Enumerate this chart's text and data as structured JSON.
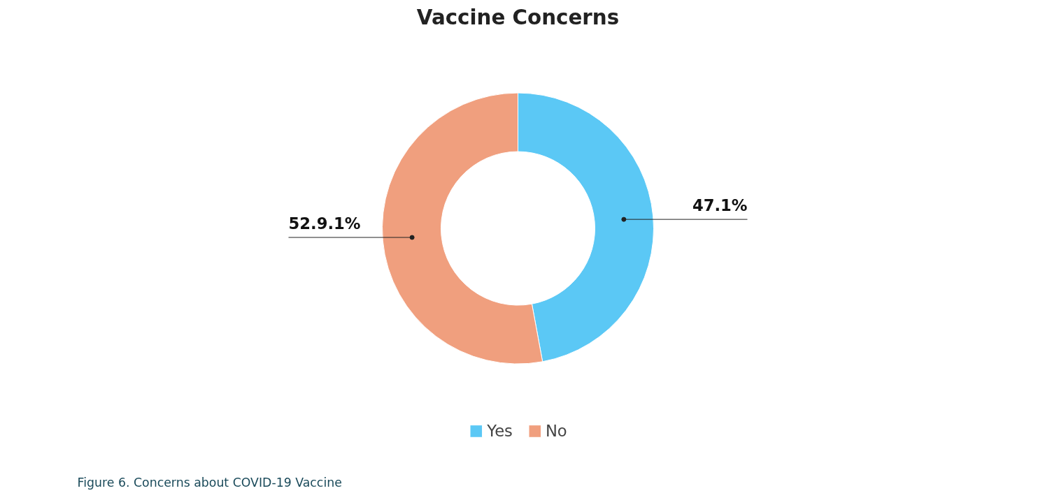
{
  "chart_data": {
    "type": "donut",
    "title": "Vaccine Concerns",
    "categories": [
      "Yes",
      "No"
    ],
    "values": [
      47.1,
      52.9
    ],
    "colors": [
      "#5bc8f5",
      "#f09f7e"
    ],
    "value_labels": [
      "47.1%",
      "52.9.1%"
    ],
    "legend": "bottom",
    "annotations": [
      "Figure 6. Concerns about COVID-19 Vaccine"
    ]
  }
}
